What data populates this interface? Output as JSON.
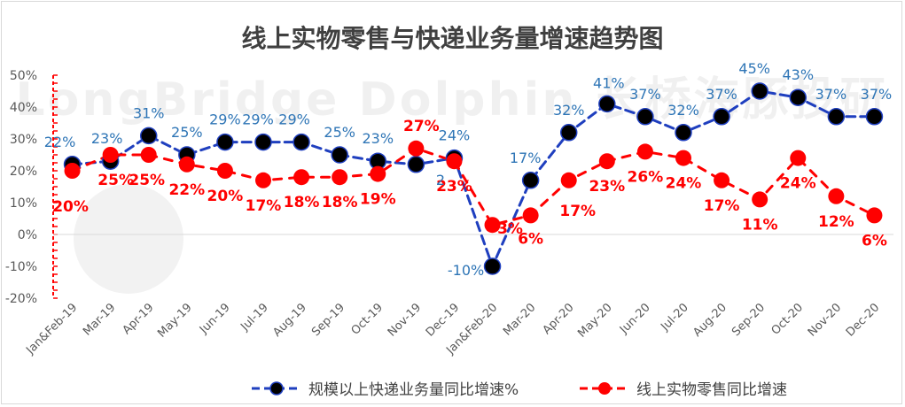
{
  "chart_data": {
    "type": "line",
    "title": "线上实物零售与快递业务量增速趋势图",
    "watermark": "LongBridge Dolphin 长桥海豚投研",
    "categories": [
      "Jan&Feb-19",
      "Mar-19",
      "Apr-19",
      "May-19",
      "Jun-19",
      "Jul-19",
      "Aug-19",
      "Sep-19",
      "Oct-19",
      "Nov-19",
      "Dec-19",
      "Jan&Feb-20",
      "Mar-20",
      "Apr-20",
      "May-20",
      "Jun-20",
      "Jul-20",
      "Aug-20",
      "Sep-20",
      "Oct-20",
      "Nov-20",
      "Dec-20"
    ],
    "y_ticks": [
      "-20%",
      "-10%",
      "0%",
      "10%",
      "20%",
      "30%",
      "40%",
      "50%"
    ],
    "ylim": [
      -20,
      50
    ],
    "series": [
      {
        "name": "规模以上快递业务量同比增速%",
        "color": "#1f3fbf",
        "marker_color": "#000000",
        "label_color": "#2e75b6",
        "line_style": "dashed",
        "values": [
          22,
          23,
          31,
          25,
          29,
          29,
          29,
          25,
          23,
          22,
          24,
          -10,
          17,
          32,
          41,
          37,
          32,
          37,
          45,
          43,
          37,
          37
        ],
        "labels": [
          "22%",
          "23%",
          "31%",
          "25%",
          "29%",
          "29%",
          "29%",
          "25%",
          "23%",
          "",
          "24%",
          "-10%",
          "17%",
          "32%",
          "41%",
          "37%",
          "32%",
          "37%",
          "45%",
          "43%",
          "37%",
          "37%"
        ]
      },
      {
        "name": "线上实物零售同比增速",
        "color": "#ff0000",
        "marker_color": "#ff0000",
        "label_color": "#ff0000",
        "line_style": "dashed",
        "values": [
          20,
          25,
          25,
          22,
          20,
          17,
          18,
          18,
          19,
          27,
          23,
          3,
          6,
          17,
          23,
          26,
          24,
          17,
          11,
          24,
          12,
          6
        ],
        "labels": [
          "20%",
          "25%",
          "25%",
          "22%",
          "20%",
          "17%",
          "18%",
          "18%",
          "19%",
          "27%",
          "23%",
          "3%",
          "6%",
          "17%",
          "23%",
          "26%",
          "24%",
          "17%",
          "11%",
          "24%",
          "12%",
          "6%"
        ]
      }
    ],
    "extra_labels": [
      "2"
    ]
  },
  "legend": {
    "series1": "规模以上快递业务量同比增速%",
    "series2": "线上实物零售同比增速"
  }
}
